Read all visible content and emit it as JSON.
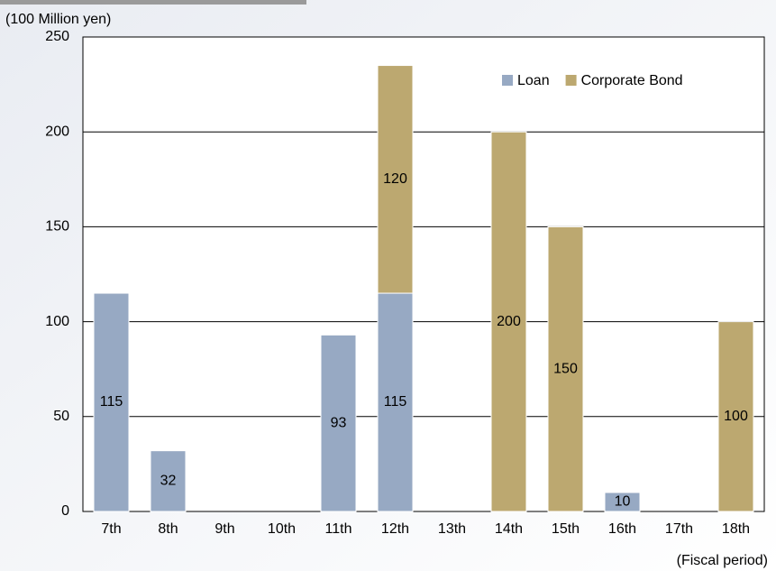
{
  "chart_data": {
    "type": "stacked-bar",
    "y_label": "(100 Million yen)",
    "x_label": "(Fiscal period)",
    "categories": [
      "7th",
      "8th",
      "9th",
      "10th",
      "11th",
      "12th",
      "13th",
      "14th",
      "15th",
      "16th",
      "17th",
      "18th"
    ],
    "series": [
      {
        "name": "Loan",
        "color": "#97a9c3",
        "values": [
          115,
          32,
          null,
          null,
          93,
          115,
          null,
          null,
          null,
          10,
          null,
          null
        ]
      },
      {
        "name": "Corporate Bond",
        "color": "#bca870",
        "values": [
          null,
          null,
          null,
          null,
          null,
          120,
          null,
          200,
          150,
          null,
          null,
          100
        ]
      }
    ],
    "ylim": [
      0,
      250
    ],
    "yticks": [
      0,
      50,
      100,
      150,
      200,
      250
    ],
    "grid": true,
    "legend": "top-right"
  }
}
